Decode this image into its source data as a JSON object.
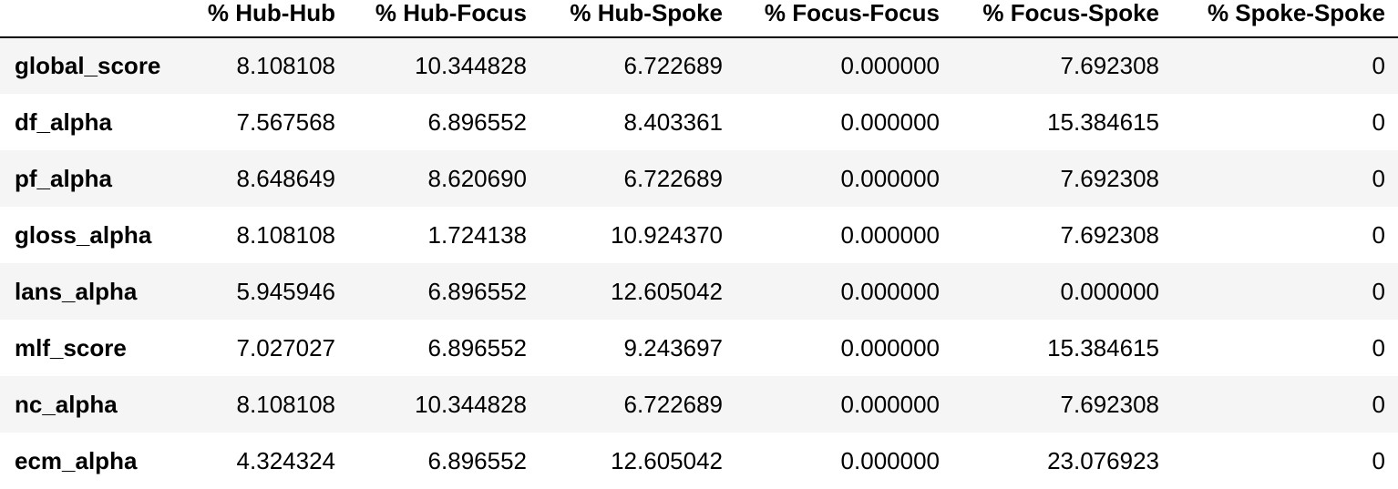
{
  "table": {
    "columns": [
      "",
      "% Hub-Hub",
      "% Hub-Focus",
      "% Hub-Spoke",
      "% Focus-Focus",
      "% Focus-Spoke",
      "% Spoke-Spoke"
    ],
    "rows": [
      {
        "index": "global_score",
        "values": [
          "8.108108",
          "10.344828",
          "6.722689",
          "0.000000",
          "7.692308",
          "0"
        ]
      },
      {
        "index": "df_alpha",
        "values": [
          "7.567568",
          "6.896552",
          "8.403361",
          "0.000000",
          "15.384615",
          "0"
        ]
      },
      {
        "index": "pf_alpha",
        "values": [
          "8.648649",
          "8.620690",
          "6.722689",
          "0.000000",
          "7.692308",
          "0"
        ]
      },
      {
        "index": "gloss_alpha",
        "values": [
          "8.108108",
          "1.724138",
          "10.924370",
          "0.000000",
          "7.692308",
          "0"
        ]
      },
      {
        "index": "lans_alpha",
        "values": [
          "5.945946",
          "6.896552",
          "12.605042",
          "0.000000",
          "0.000000",
          "0"
        ]
      },
      {
        "index": "mlf_score",
        "values": [
          "7.027027",
          "6.896552",
          "9.243697",
          "0.000000",
          "15.384615",
          "0"
        ]
      },
      {
        "index": "nc_alpha",
        "values": [
          "8.108108",
          "10.344828",
          "6.722689",
          "0.000000",
          "7.692308",
          "0"
        ]
      },
      {
        "index": "ecm_alpha",
        "values": [
          "4.324324",
          "6.896552",
          "12.605042",
          "0.000000",
          "23.076923",
          "0"
        ]
      }
    ]
  }
}
